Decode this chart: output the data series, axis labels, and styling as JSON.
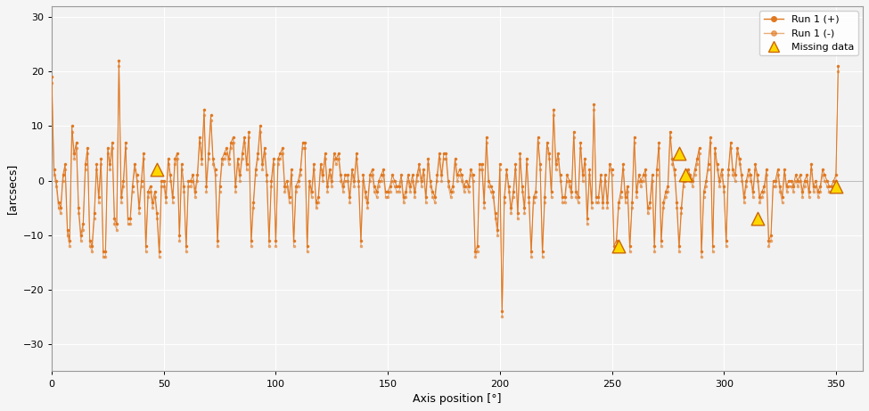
{
  "xlabel": "Axis position [°]",
  "ylabel": "[arcsecs]",
  "xlim": [
    0,
    362
  ],
  "ylim": [
    -35,
    32
  ],
  "yticks": [
    -30,
    -20,
    -10,
    0,
    10,
    20,
    30
  ],
  "xticks": [
    0,
    50,
    100,
    150,
    200,
    250,
    300,
    350
  ],
  "line_color": "#E07820",
  "marker_color": "#E07820",
  "missing_color": "#FFD700",
  "missing_edge": "#CC6600",
  "bg_color": "#F2F2F2",
  "grid_color": "#FFFFFF",
  "legend_labels": [
    "Run 1 (+)",
    "Run 1 (-)",
    "Missing data"
  ],
  "missing_x": [
    47,
    253,
    280,
    283,
    315,
    350
  ],
  "missing_y": [
    2,
    -12,
    5,
    1,
    -7,
    -1
  ],
  "run1_plus": [
    19,
    2,
    0,
    -4,
    -5,
    1,
    3,
    -9,
    -11,
    10,
    5,
    7,
    -5,
    -10,
    -8,
    3,
    6,
    -11,
    -12,
    -6,
    3,
    -3,
    4,
    -13,
    -13,
    6,
    3,
    7,
    -7,
    -8,
    22,
    -3,
    0,
    7,
    -7,
    -7,
    -1,
    3,
    1,
    -5,
    0,
    5,
    -12,
    -2,
    -1,
    -4,
    -2,
    -6,
    -13,
    0,
    0,
    -3,
    4,
    1,
    -3,
    4,
    5,
    -10,
    3,
    -1,
    -12,
    0,
    0,
    1,
    -2,
    1,
    8,
    4,
    13,
    -1,
    5,
    12,
    4,
    2,
    -11,
    -1,
    4,
    5,
    6,
    4,
    7,
    8,
    -1,
    4,
    1,
    5,
    8,
    3,
    9,
    -11,
    -4,
    2,
    5,
    10,
    3,
    6,
    1,
    -11,
    0,
    4,
    -11,
    4,
    5,
    6,
    -1,
    0,
    -3,
    2,
    -11,
    -1,
    0,
    2,
    7,
    7,
    -12,
    0,
    -2,
    3,
    -4,
    -3,
    3,
    1,
    5,
    -1,
    2,
    0,
    5,
    4,
    5,
    1,
    -1,
    1,
    1,
    -3,
    2,
    0,
    5,
    0,
    -11,
    1,
    -2,
    -4,
    1,
    2,
    -1,
    -2,
    0,
    1,
    2,
    -2,
    -2,
    -1,
    1,
    0,
    -1,
    -1,
    1,
    -3,
    -2,
    1,
    -1,
    1,
    -2,
    1,
    3,
    0,
    2,
    -3,
    4,
    0,
    -2,
    -3,
    1,
    5,
    1,
    5,
    5,
    0,
    -2,
    -1,
    4,
    1,
    2,
    1,
    -1,
    0,
    -1,
    2,
    1,
    -13,
    -12,
    3,
    3,
    -4,
    8,
    0,
    -1,
    -2,
    -6,
    -9,
    3,
    -24,
    -3,
    2,
    -1,
    -5,
    -2,
    3,
    -6,
    5,
    -1,
    -5,
    4,
    -3,
    -13,
    -3,
    -2,
    8,
    3,
    -13,
    -3,
    7,
    5,
    -2,
    13,
    3,
    5,
    1,
    -3,
    -3,
    1,
    0,
    -2,
    9,
    -2,
    -3,
    7,
    1,
    4,
    -7,
    2,
    -4,
    14,
    -3,
    -3,
    1,
    -4,
    1,
    -4,
    3,
    2,
    -12,
    -11,
    -4,
    -2,
    3,
    -3,
    -1,
    -12,
    -4,
    8,
    -2,
    1,
    0,
    1,
    2,
    -5,
    -4,
    1,
    -12,
    2,
    7,
    -11,
    -4,
    -2,
    -1,
    9,
    4,
    2,
    -4,
    -12,
    -5,
    0,
    1,
    2,
    1,
    0,
    2,
    4,
    6,
    -13,
    -2,
    0,
    3,
    8,
    -12,
    6,
    3,
    0,
    2,
    -1,
    -11,
    2,
    7,
    2,
    1,
    6,
    4,
    1,
    -3,
    0,
    2,
    1,
    -2,
    3,
    1,
    -3,
    -2,
    -1,
    2,
    -11,
    -10,
    0,
    0,
    2,
    -1,
    -3,
    2,
    -1,
    0,
    0,
    -1,
    1,
    0,
    1,
    -2,
    0,
    1,
    -2,
    3,
    -1,
    0,
    -2,
    -1,
    2,
    1,
    0,
    -1,
    -1,
    0,
    1,
    21
  ],
  "run1_minus": [
    18,
    1,
    -1,
    -5,
    -6,
    0,
    2,
    -10,
    -12,
    9,
    4,
    6,
    -6,
    -11,
    -9,
    2,
    5,
    -12,
    -13,
    -7,
    2,
    -4,
    3,
    -14,
    -14,
    5,
    2,
    6,
    -8,
    -9,
    21,
    -4,
    -1,
    6,
    -8,
    -8,
    -2,
    2,
    0,
    -6,
    -1,
    4,
    -13,
    -3,
    -2,
    -5,
    -3,
    -7,
    -14,
    -1,
    -1,
    -4,
    3,
    0,
    -4,
    3,
    4,
    -11,
    2,
    -2,
    -13,
    -1,
    -1,
    0,
    -3,
    0,
    7,
    3,
    12,
    -2,
    4,
    11,
    3,
    1,
    -12,
    -2,
    3,
    4,
    5,
    3,
    6,
    7,
    -2,
    3,
    0,
    4,
    7,
    2,
    8,
    -12,
    -5,
    1,
    4,
    9,
    2,
    5,
    0,
    -12,
    -1,
    3,
    -12,
    3,
    4,
    5,
    -2,
    -1,
    -4,
    1,
    -12,
    -2,
    -1,
    1,
    6,
    6,
    -13,
    -1,
    -3,
    2,
    -5,
    -4,
    2,
    0,
    4,
    -2,
    1,
    -1,
    4,
    3,
    4,
    0,
    -2,
    0,
    0,
    -4,
    1,
    -1,
    4,
    -1,
    -12,
    0,
    -3,
    -5,
    0,
    1,
    -2,
    -3,
    -1,
    0,
    1,
    -3,
    -3,
    -2,
    0,
    -1,
    -2,
    -2,
    0,
    -4,
    -3,
    0,
    -2,
    0,
    -3,
    0,
    2,
    -1,
    1,
    -4,
    3,
    -1,
    -3,
    -4,
    0,
    4,
    0,
    4,
    4,
    -1,
    -3,
    -2,
    3,
    0,
    1,
    0,
    -2,
    -1,
    -2,
    1,
    0,
    -14,
    -13,
    2,
    2,
    -5,
    7,
    -1,
    -2,
    -3,
    -7,
    -10,
    2,
    -25,
    -4,
    1,
    -2,
    -6,
    -3,
    2,
    -7,
    4,
    -2,
    -6,
    3,
    -4,
    -14,
    -4,
    -3,
    7,
    2,
    -14,
    -4,
    6,
    4,
    -3,
    12,
    2,
    4,
    0,
    -4,
    -4,
    0,
    -1,
    -3,
    8,
    -3,
    -4,
    6,
    0,
    3,
    -8,
    1,
    -5,
    13,
    -4,
    -4,
    0,
    -5,
    0,
    -5,
    2,
    1,
    -13,
    -12,
    -5,
    -3,
    2,
    -4,
    -2,
    -13,
    -5,
    7,
    -3,
    0,
    -1,
    0,
    1,
    -6,
    -5,
    0,
    -13,
    1,
    6,
    -12,
    -5,
    -3,
    -2,
    8,
    3,
    1,
    -5,
    -13,
    -6,
    -1,
    0,
    1,
    0,
    -1,
    1,
    3,
    5,
    -14,
    -3,
    -1,
    2,
    7,
    -13,
    5,
    2,
    -1,
    1,
    -2,
    -12,
    1,
    6,
    1,
    0,
    5,
    3,
    0,
    -4,
    -1,
    1,
    0,
    -3,
    2,
    0,
    -4,
    -3,
    -2,
    1,
    -12,
    -11,
    -1,
    -1,
    1,
    -2,
    -4,
    1,
    -2,
    -1,
    -1,
    -2,
    0,
    -1,
    0,
    -3,
    -1,
    0,
    -3,
    2,
    -2,
    -1,
    -3,
    -2,
    1,
    0,
    -1,
    -2,
    -2,
    -1,
    0,
    20
  ]
}
